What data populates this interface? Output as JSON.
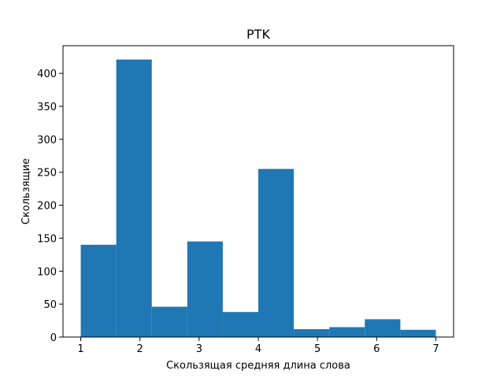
{
  "chart_data": {
    "type": "bar",
    "title": "PTK",
    "xlabel": "Скользящая средняя длина слова",
    "ylabel": "Скользящие",
    "bins": [
      {
        "x0": 1.0,
        "x1": 1.6,
        "count": 140
      },
      {
        "x0": 1.6,
        "x1": 2.2,
        "count": 421
      },
      {
        "x0": 2.2,
        "x1": 2.8,
        "count": 46
      },
      {
        "x0": 2.8,
        "x1": 3.4,
        "count": 145
      },
      {
        "x0": 3.4,
        "x1": 4.0,
        "count": 38
      },
      {
        "x0": 4.0,
        "x1": 4.6,
        "count": 255
      },
      {
        "x0": 4.6,
        "x1": 5.2,
        "count": 12
      },
      {
        "x0": 5.2,
        "x1": 5.8,
        "count": 15
      },
      {
        "x0": 5.8,
        "x1": 6.4,
        "count": 27
      },
      {
        "x0": 6.4,
        "x1": 7.0,
        "count": 11
      }
    ],
    "xlim": [
      0.7,
      7.3
    ],
    "ylim": [
      0,
      442
    ],
    "xticks": [
      1,
      2,
      3,
      4,
      5,
      6,
      7
    ],
    "yticks": [
      0,
      50,
      100,
      150,
      200,
      250,
      300,
      350,
      400
    ],
    "bar_color": "#1f77b4",
    "grid": false,
    "legend": "none"
  }
}
